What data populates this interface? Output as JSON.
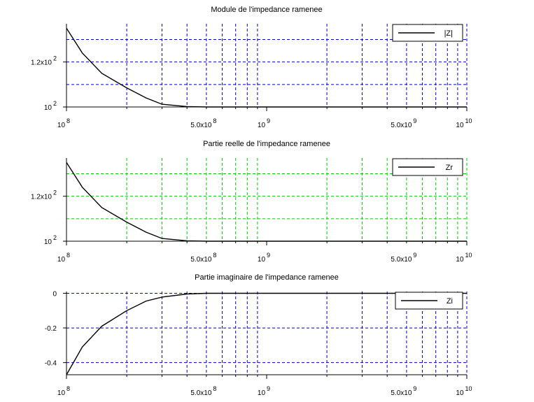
{
  "chart_data": [
    {
      "type": "line",
      "title": "Module de l'impedance ramenee",
      "xscale": "log",
      "xlim": [
        100000000,
        10000000000
      ],
      "grid": true,
      "grid_color": "#0000cc",
      "line_color": "#000000",
      "legend_position": "top-right",
      "series": [
        {
          "name": "|Z|",
          "x": [
            100000000,
            120000000,
            150000000,
            200000000,
            250000000,
            300000000,
            400000000,
            500000000
          ],
          "y": [
            135,
            124,
            115,
            108.5,
            104,
            101.2,
            100.2,
            100
          ]
        }
      ],
      "x_ticks": [
        {
          "value": 100000000,
          "base": "10",
          "exp": "8"
        },
        {
          "value": 500000000,
          "base": "5.0x10",
          "exp": "8"
        },
        {
          "value": 1000000000,
          "base": "10",
          "exp": "9"
        },
        {
          "value": 5000000000,
          "base": "5.0x10",
          "exp": "9"
        },
        {
          "value": 10000000000,
          "base": "10",
          "exp": "10"
        }
      ],
      "y_ticks": [
        {
          "value": 100,
          "base": "10",
          "exp": "2"
        },
        {
          "value": 120,
          "base": "1.2x10",
          "exp": "2"
        }
      ],
      "ylim": [
        100,
        137
      ],
      "y_grid": [
        110,
        120,
        130
      ]
    },
    {
      "type": "line",
      "title": "Partie reelle de l'impedance ramenee",
      "xscale": "log",
      "xlim": [
        100000000,
        10000000000
      ],
      "grid": true,
      "grid_color": "#00cc00",
      "line_color": "#000000",
      "legend_position": "top-right",
      "series": [
        {
          "name": "Zr",
          "x": [
            100000000,
            120000000,
            150000000,
            200000000,
            250000000,
            300000000,
            400000000,
            500000000
          ],
          "y": [
            135,
            124,
            115,
            108.5,
            104,
            101.2,
            100.2,
            100
          ]
        }
      ],
      "x_ticks": [
        {
          "value": 100000000,
          "base": "10",
          "exp": "8"
        },
        {
          "value": 500000000,
          "base": "5.0x10",
          "exp": "8"
        },
        {
          "value": 1000000000,
          "base": "10",
          "exp": "9"
        },
        {
          "value": 5000000000,
          "base": "5.0x10",
          "exp": "9"
        },
        {
          "value": 10000000000,
          "base": "10",
          "exp": "10"
        }
      ],
      "y_ticks": [
        {
          "value": 100,
          "base": "10",
          "exp": "2"
        },
        {
          "value": 120,
          "base": "1.2x10",
          "exp": "2"
        }
      ],
      "ylim": [
        100,
        137
      ],
      "y_grid": [
        110,
        120,
        130
      ]
    },
    {
      "type": "line",
      "title": "Partie imaginaire de l'impedance ramenee",
      "xscale": "log",
      "xlim": [
        100000000,
        10000000000
      ],
      "grid": true,
      "grid_color": "#0000cc",
      "line_color": "#000000",
      "legend_position": "top-right",
      "series": [
        {
          "name": "Zi",
          "x": [
            100000000,
            120000000,
            150000000,
            200000000,
            250000000,
            300000000,
            400000000,
            500000000
          ],
          "y": [
            -0.47,
            -0.31,
            -0.19,
            -0.1,
            -0.045,
            -0.022,
            -0.004,
            0
          ]
        }
      ],
      "x_ticks": [
        {
          "value": 100000000,
          "base": "10",
          "exp": "8"
        },
        {
          "value": 500000000,
          "base": "5.0x10",
          "exp": "8"
        },
        {
          "value": 1000000000,
          "base": "10",
          "exp": "9"
        },
        {
          "value": 5000000000,
          "base": "5.0x10",
          "exp": "9"
        },
        {
          "value": 10000000000,
          "base": "10",
          "exp": "10"
        }
      ],
      "y_ticks": [
        {
          "value": 0,
          "base": "0",
          "exp": ""
        },
        {
          "value": -0.2,
          "base": "-0.2",
          "exp": ""
        },
        {
          "value": -0.4,
          "base": "-0.4",
          "exp": ""
        }
      ],
      "ylim": [
        -0.47,
        0.01
      ],
      "y_grid": [
        0,
        -0.2,
        -0.4
      ]
    }
  ]
}
